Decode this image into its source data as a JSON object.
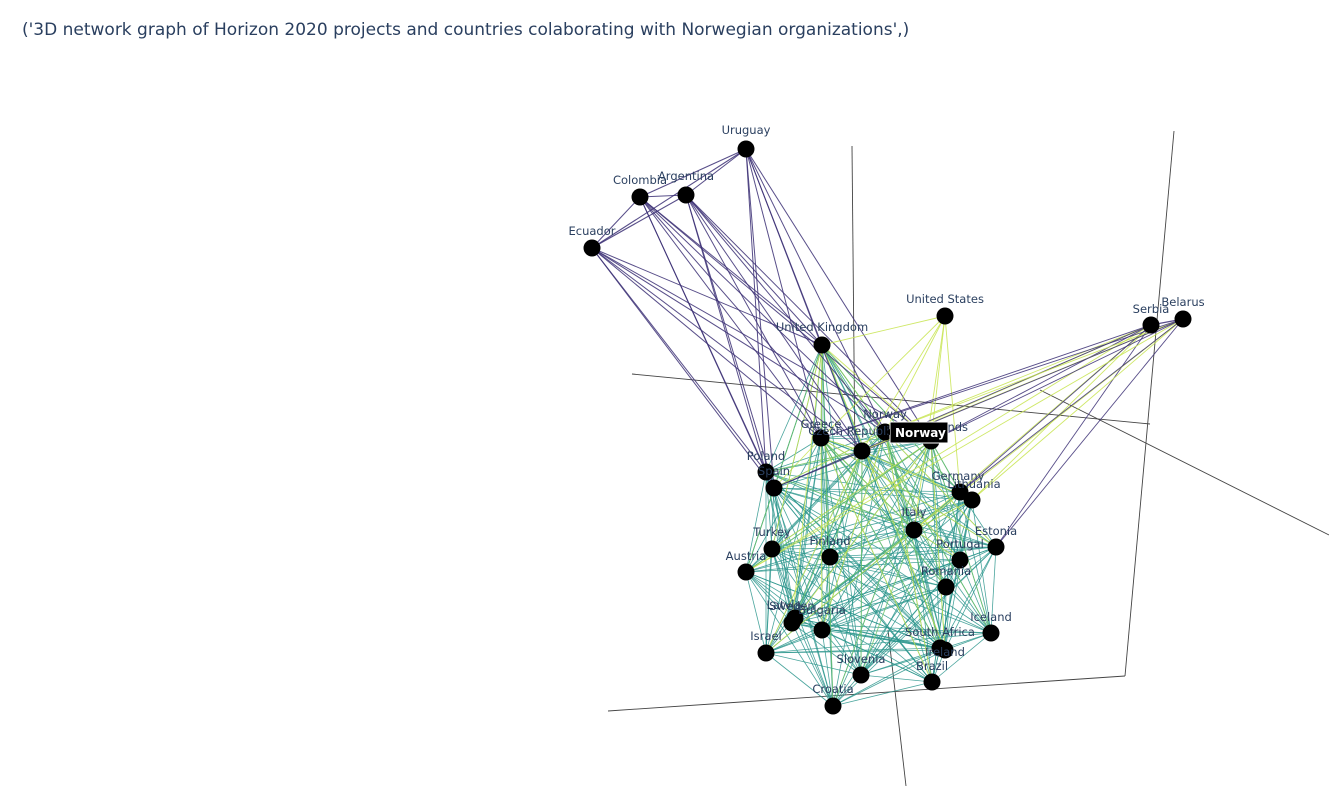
{
  "title": "('3D network graph of Horizon 2020 projects and countries colaborating with Norwegian organizations',)",
  "hover_label": "Norway",
  "colors": {
    "node": "#000000",
    "axis": "#444444",
    "label": "#2a3f5f",
    "edge_purple": "#3b2f74",
    "edge_teal": "#2a958c",
    "edge_green": "#6cc36a",
    "edge_yellow": "#c7e44e",
    "hover_bg": "#000000"
  },
  "chart_data": {
    "type": "network-3d",
    "title": "('3D network graph of Horizon 2020 projects and countries colaborating with Norwegian organizations',)",
    "highlighted_node": "Norway",
    "colorscale": "viridis",
    "nodes": [
      {
        "name": "Uruguay"
      },
      {
        "name": "Colombia"
      },
      {
        "name": "Argentina"
      },
      {
        "name": "Ecuador"
      },
      {
        "name": "United States"
      },
      {
        "name": "Serbia"
      },
      {
        "name": "Belarus"
      },
      {
        "name": "United Kingdom"
      },
      {
        "name": "Norway"
      },
      {
        "name": "Greece"
      },
      {
        "name": "Czech Republic"
      },
      {
        "name": "Netherlands"
      },
      {
        "name": "Poland"
      },
      {
        "name": "Spain"
      },
      {
        "name": "Germany"
      },
      {
        "name": "Lithuania"
      },
      {
        "name": "Italy"
      },
      {
        "name": "Turkey"
      },
      {
        "name": "Finland"
      },
      {
        "name": "Estonia"
      },
      {
        "name": "Austria"
      },
      {
        "name": "Portugal"
      },
      {
        "name": "Romania"
      },
      {
        "name": "Latvia"
      },
      {
        "name": "Sweden"
      },
      {
        "name": "Bulgaria"
      },
      {
        "name": "Iceland"
      },
      {
        "name": "Israel"
      },
      {
        "name": "South Africa"
      },
      {
        "name": "Ireland"
      },
      {
        "name": "Slovenia"
      },
      {
        "name": "Brazil"
      },
      {
        "name": "Croatia"
      }
    ]
  }
}
